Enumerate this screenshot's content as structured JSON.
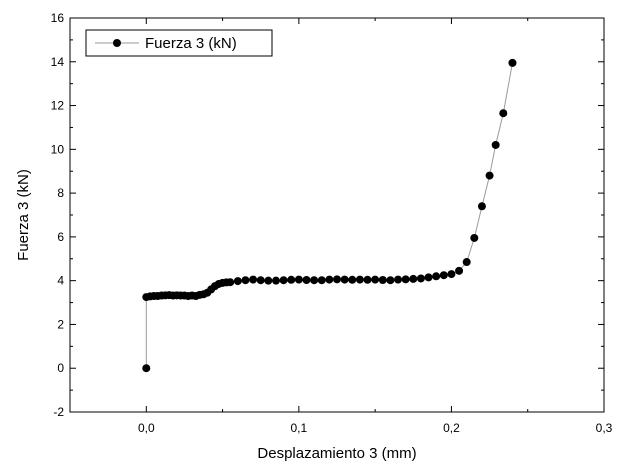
{
  "chart_data": {
    "type": "line",
    "xlabel": "Desplazamiento 3 (mm)",
    "ylabel": "Fuerza 3 (kN)",
    "xlim": [
      -0.05,
      0.3
    ],
    "ylim": [
      -2,
      16
    ],
    "x_ticks": [
      0.0,
      0.1,
      0.2,
      0.3
    ],
    "x_tick_labels": [
      "0,0",
      "0,1",
      "0,2",
      "0,3"
    ],
    "y_ticks": [
      -2,
      0,
      2,
      4,
      6,
      8,
      10,
      12,
      14,
      16
    ],
    "y_tick_labels": [
      "-2",
      "0",
      "2",
      "4",
      "6",
      "8",
      "10",
      "12",
      "14",
      "16"
    ],
    "grid": false,
    "legend_position": "top-left",
    "colors": {
      "line": "#9a9a9a",
      "marker": "#000000",
      "frame": "#000000"
    },
    "series": [
      {
        "name": "Fuerza 3 (kN)",
        "marker": "circle",
        "points": [
          [
            0.0,
            0.0
          ],
          [
            0.0,
            3.25
          ],
          [
            0.0025,
            3.28
          ],
          [
            0.005,
            3.3
          ],
          [
            0.0075,
            3.3
          ],
          [
            0.01,
            3.32
          ],
          [
            0.0125,
            3.33
          ],
          [
            0.015,
            3.34
          ],
          [
            0.0175,
            3.32
          ],
          [
            0.02,
            3.33
          ],
          [
            0.0225,
            3.32
          ],
          [
            0.025,
            3.32
          ],
          [
            0.0275,
            3.3
          ],
          [
            0.03,
            3.32
          ],
          [
            0.0325,
            3.3
          ],
          [
            0.035,
            3.35
          ],
          [
            0.0375,
            3.38
          ],
          [
            0.04,
            3.45
          ],
          [
            0.0425,
            3.6
          ],
          [
            0.045,
            3.75
          ],
          [
            0.0475,
            3.85
          ],
          [
            0.05,
            3.9
          ],
          [
            0.0525,
            3.92
          ],
          [
            0.055,
            3.93
          ],
          [
            0.06,
            3.98
          ],
          [
            0.065,
            4.02
          ],
          [
            0.07,
            4.05
          ],
          [
            0.075,
            4.02
          ],
          [
            0.08,
            4.0
          ],
          [
            0.085,
            4.0
          ],
          [
            0.09,
            4.02
          ],
          [
            0.095,
            4.04
          ],
          [
            0.1,
            4.05
          ],
          [
            0.105,
            4.03
          ],
          [
            0.11,
            4.02
          ],
          [
            0.115,
            4.02
          ],
          [
            0.12,
            4.05
          ],
          [
            0.125,
            4.06
          ],
          [
            0.13,
            4.05
          ],
          [
            0.135,
            4.04
          ],
          [
            0.14,
            4.05
          ],
          [
            0.145,
            4.04
          ],
          [
            0.15,
            4.05
          ],
          [
            0.155,
            4.03
          ],
          [
            0.16,
            4.02
          ],
          [
            0.165,
            4.05
          ],
          [
            0.17,
            4.06
          ],
          [
            0.175,
            4.08
          ],
          [
            0.18,
            4.1
          ],
          [
            0.185,
            4.15
          ],
          [
            0.19,
            4.2
          ],
          [
            0.195,
            4.25
          ],
          [
            0.2,
            4.3
          ],
          [
            0.205,
            4.45
          ],
          [
            0.21,
            4.85
          ],
          [
            0.215,
            5.95
          ],
          [
            0.22,
            7.4
          ],
          [
            0.225,
            8.8
          ],
          [
            0.229,
            10.2
          ],
          [
            0.234,
            11.65
          ],
          [
            0.24,
            13.95
          ]
        ]
      }
    ]
  }
}
